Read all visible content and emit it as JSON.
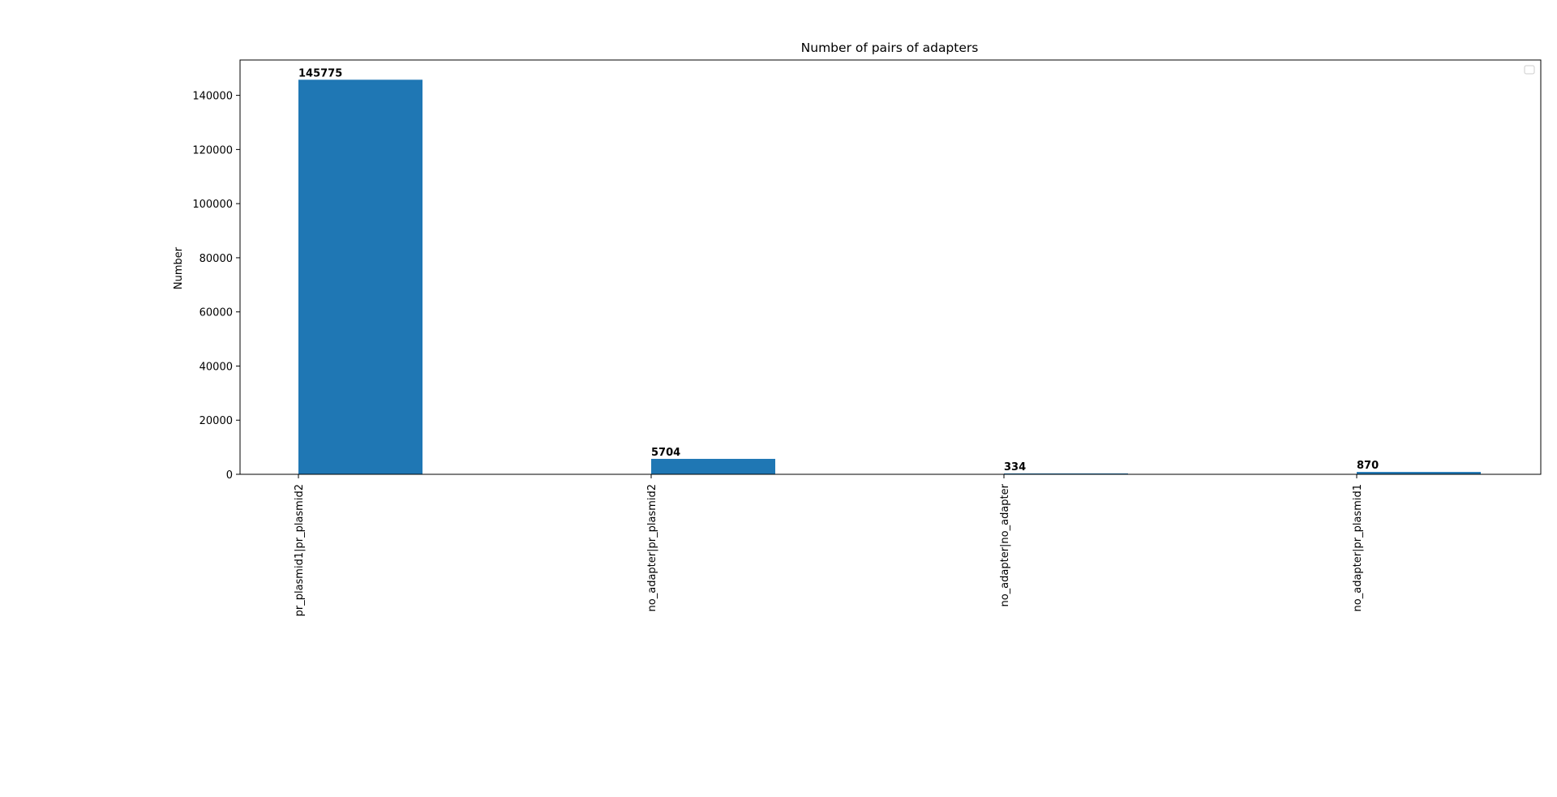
{
  "chart_data": {
    "type": "bar",
    "title": "Number of pairs of adapters",
    "xlabel": "",
    "ylabel": "Number",
    "categories": [
      "pr_plasmid1|pr_plasmid2",
      "no_adapter|pr_plasmid2",
      "no_adapter|no_adapter",
      "no_adapter|pr_plasmid1"
    ],
    "values": [
      145775,
      5704,
      334,
      870
    ],
    "data_labels": [
      "145775",
      "5704",
      "334",
      "870"
    ],
    "yticks": [
      0,
      20000,
      40000,
      60000,
      80000,
      100000,
      120000,
      140000
    ],
    "ytick_labels": [
      "0",
      "20000",
      "40000",
      "60000",
      "80000",
      "100000",
      "120000",
      "140000"
    ],
    "ylim": [
      0,
      153064
    ],
    "grid": false,
    "legend": "top-right (empty)",
    "bar_color": "#1f77b4"
  }
}
